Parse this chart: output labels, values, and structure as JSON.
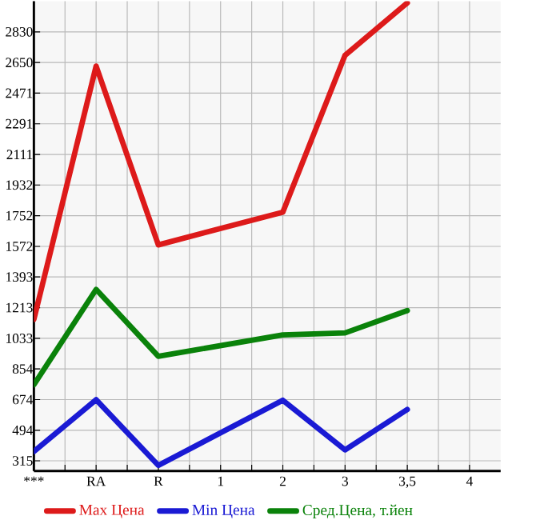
{
  "chart_data": {
    "type": "line",
    "categories": [
      "***",
      "RA",
      "R",
      "1",
      "2",
      "3",
      "3,5",
      "4"
    ],
    "series": [
      {
        "name": "Max Цена",
        "color": "#dd1a1a",
        "values": [
          1144,
          2629,
          1581,
          null,
          1773,
          2693,
          3000,
          null
        ]
      },
      {
        "name": "Min Цена",
        "color": "#1a1ad4",
        "values": [
          370,
          673,
          288,
          null,
          670,
          379,
          616,
          null
        ]
      },
      {
        "name": "Сред.Цена, т.йен",
        "color": "#0a820a",
        "values": [
          761,
          1320,
          928,
          null,
          1053,
          1065,
          1196,
          null
        ]
      }
    ],
    "ylim": [
      255,
      3010
    ],
    "yticks": [
      315,
      494,
      674,
      854,
      1033,
      1213,
      1393,
      1572,
      1752,
      1932,
      2111,
      2291,
      2471,
      2650,
      2830
    ],
    "grid": true,
    "legend": "bottom"
  }
}
